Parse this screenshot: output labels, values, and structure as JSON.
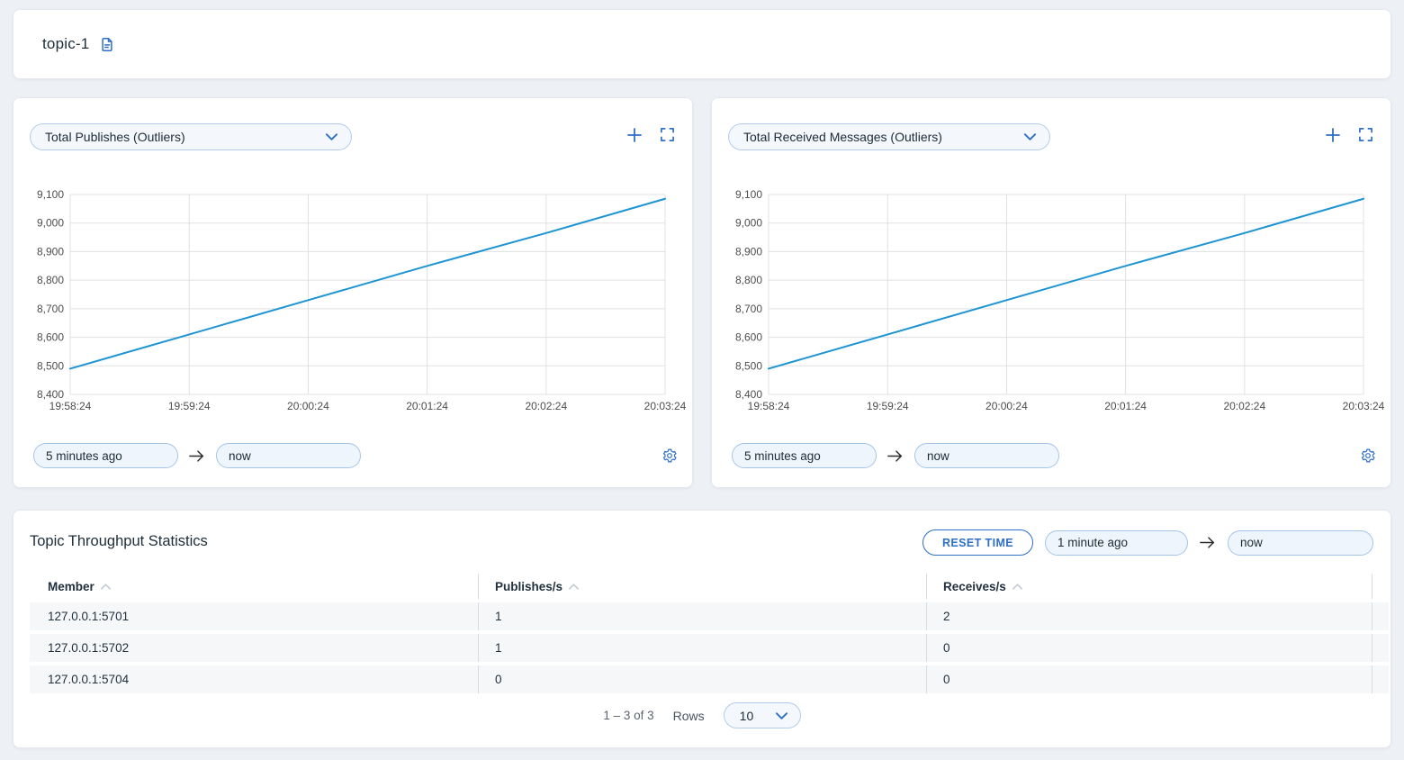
{
  "page": {
    "accent_blue": "#2e6fc8",
    "line_blue": "#1f94d2"
  },
  "header": {
    "title": "topic-1"
  },
  "charts": [
    {
      "metric_selector": "Total Publishes (Outliers)",
      "time_from": "5 minutes ago",
      "time_to": "now",
      "chart_data": {
        "type": "line",
        "title": "Total Publishes (Outliers)",
        "x": [
          "19:58:24",
          "19:59:24",
          "20:00:24",
          "20:01:24",
          "20:02:24",
          "20:03:24"
        ],
        "series": [
          {
            "name": "Total Publishes",
            "values": [
              8490,
              8610,
              8730,
              8850,
              8965,
              9085
            ]
          }
        ],
        "ylim": [
          8400,
          9100
        ],
        "ytick_step": 100,
        "grid": true,
        "legend_position": "none",
        "line_color": "#1f94d2"
      }
    },
    {
      "metric_selector": "Total Received Messages (Outliers)",
      "time_from": "5 minutes ago",
      "time_to": "now",
      "chart_data": {
        "type": "line",
        "title": "Total Received Messages (Outliers)",
        "x": [
          "19:58:24",
          "19:59:24",
          "20:00:24",
          "20:01:24",
          "20:02:24",
          "20:03:24"
        ],
        "series": [
          {
            "name": "Total Received Messages",
            "values": [
              8490,
              8610,
              8730,
              8850,
              8965,
              9085
            ]
          }
        ],
        "ylim": [
          8400,
          9100
        ],
        "ytick_step": 100,
        "grid": true,
        "legend_position": "none",
        "line_color": "#1f94d2"
      }
    }
  ],
  "stats": {
    "title": "Topic Throughput Statistics",
    "reset_time_button": "RESET TIME",
    "time_from": "1 minute ago",
    "time_to": "now",
    "table": {
      "columns": [
        "Member",
        "Publishes/s",
        "Receives/s"
      ],
      "rows": [
        {
          "member": "127.0.0.1:5701",
          "publishes_per_s": "1",
          "receives_per_s": "2"
        },
        {
          "member": "127.0.0.1:5702",
          "publishes_per_s": "1",
          "receives_per_s": "0"
        },
        {
          "member": "127.0.0.1:5704",
          "publishes_per_s": "0",
          "receives_per_s": "0"
        }
      ]
    },
    "pagination": {
      "range_label": "1 – 3 of 3",
      "rows_label": "Rows",
      "rows_per_page": "10"
    }
  }
}
